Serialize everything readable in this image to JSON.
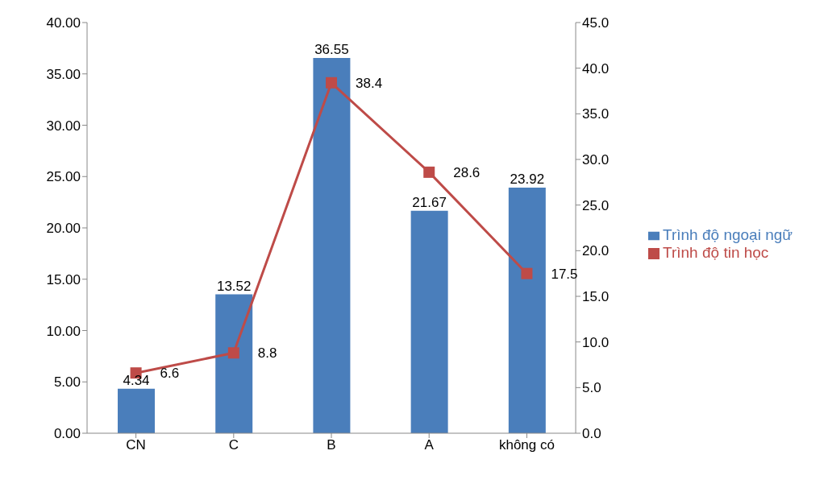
{
  "chart_data": {
    "type": "bar",
    "categories": [
      "CN",
      "C",
      "B",
      "A",
      "không có"
    ],
    "series": [
      {
        "name": "Trình độ ngoại ngữ",
        "color": "#4a7ebb",
        "values": [
          4.34,
          13.52,
          36.55,
          21.67,
          23.92
        ]
      },
      {
        "name": "Trình độ tin học",
        "type": "line",
        "axis": "y2",
        "color": "#be4b48",
        "marker": "square",
        "values": [
          6.6,
          8.8,
          38.4,
          28.6,
          17.5
        ]
      }
    ],
    "ylim": [
      0,
      40
    ],
    "yticks": [
      {
        "value": 0,
        "label": "0.00"
      },
      {
        "value": 5,
        "label": "5.00"
      },
      {
        "value": 10,
        "label": "10.00"
      },
      {
        "value": 15,
        "label": "15.00"
      },
      {
        "value": 20,
        "label": "20.00"
      },
      {
        "value": 25,
        "label": "25.00"
      },
      {
        "value": 30,
        "label": "30.00"
      },
      {
        "value": 35,
        "label": "35.00"
      },
      {
        "value": 40,
        "label": "40.00"
      }
    ],
    "y2lim": [
      0,
      45
    ],
    "y2ticks": [
      {
        "value": 0,
        "label": "0.0"
      },
      {
        "value": 5,
        "label": "5.0"
      },
      {
        "value": 10,
        "label": "10.0"
      },
      {
        "value": 15,
        "label": "15.0"
      },
      {
        "value": 20,
        "label": "20.0"
      },
      {
        "value": 25,
        "label": "25.0"
      },
      {
        "value": 30,
        "label": "30.0"
      },
      {
        "value": 35,
        "label": "35.0"
      },
      {
        "value": 40,
        "label": "40.0"
      },
      {
        "value": 45,
        "label": "45.0"
      }
    ],
    "data_labels": true,
    "legend": "right",
    "grid": false
  }
}
